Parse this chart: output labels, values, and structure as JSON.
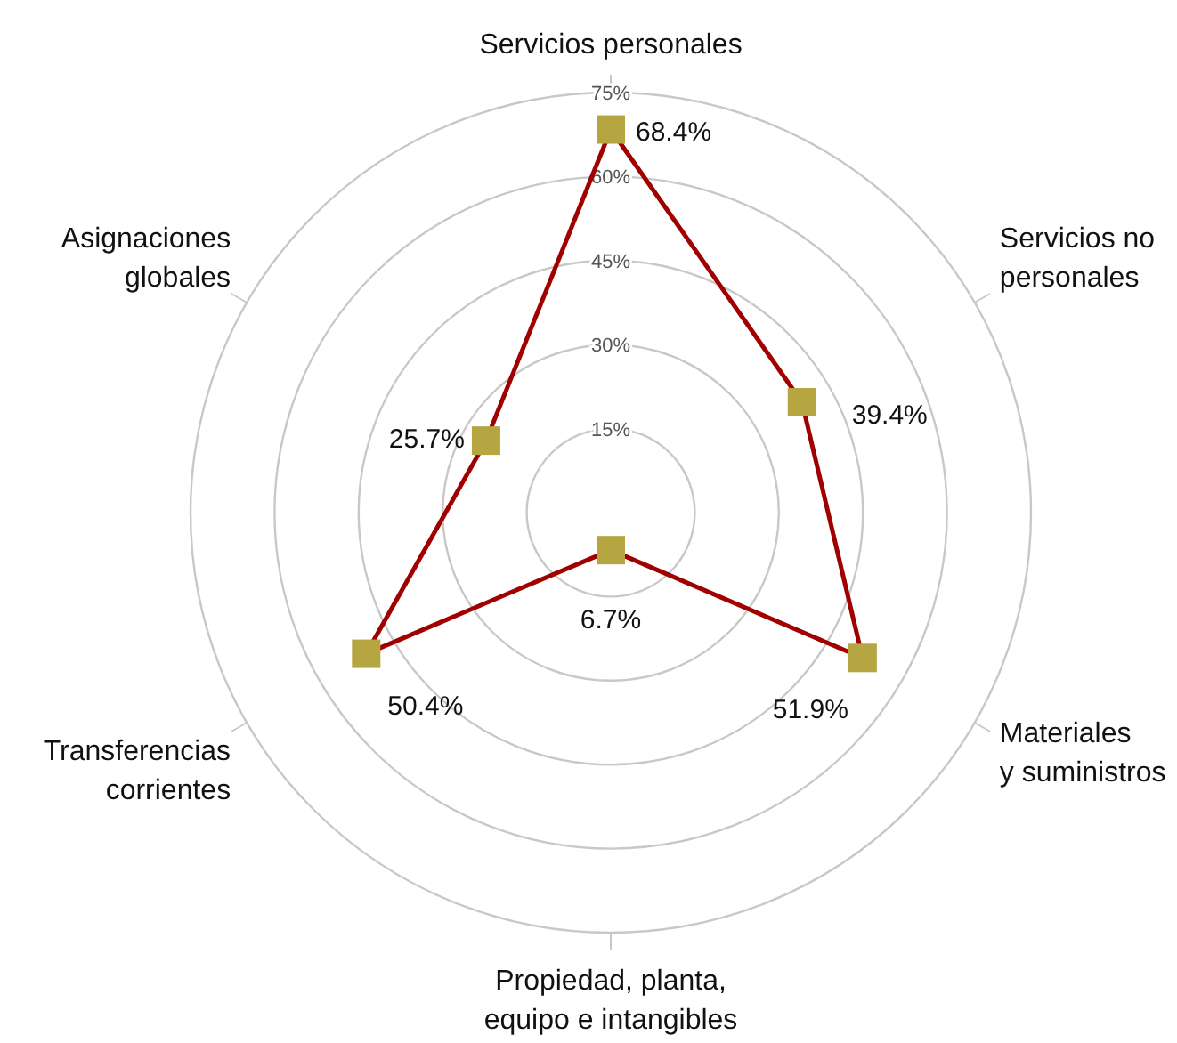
{
  "chart_data": {
    "type": "radar",
    "categories": [
      "Servicios personales",
      "Servicios no\npersonales",
      "Materiales\ny suministros",
      "Propiedad, planta,\nequipo  e intangibles",
      "Transferencias\ncorrientes",
      "Asignaciones\nglobales"
    ],
    "series": [
      {
        "color": "#a00000",
        "colors": [
          "#b5a642",
          "#b5a642",
          "#b5a642",
          "#b5a642",
          "#b5a642",
          "#b5a642"
        ],
        "values": [
          68.4,
          39.4,
          51.9,
          6.7,
          50.4,
          25.7
        ],
        "value_labels": [
          "68.4%",
          "39.4%",
          "51.9%",
          "6.7%",
          "50.4%",
          "25.7%"
        ]
      }
    ],
    "ylim": [
      0,
      75
    ],
    "yticks": [
      {
        "value": 15,
        "label": "15%"
      },
      {
        "value": 30,
        "label": "30%"
      },
      {
        "value": 45,
        "label": "45%"
      },
      {
        "value": 60,
        "label": "60%"
      },
      {
        "value": 75,
        "label": "75%"
      }
    ],
    "grid": true,
    "marker": "square"
  }
}
